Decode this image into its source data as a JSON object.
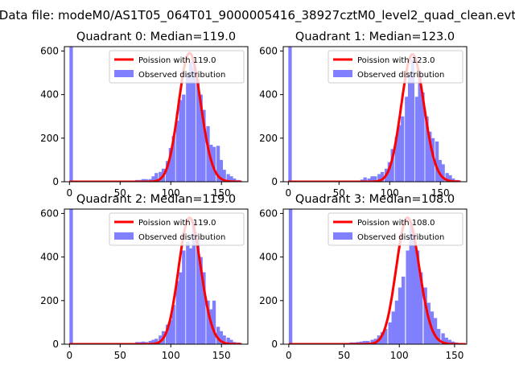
{
  "figure": {
    "suptitle": "Data file: modeM0/AS1T05_064T01_9000005416_38927cztM0_level2_quad_clean.evt"
  },
  "chart_data": [
    {
      "type": "bar",
      "title": "Quadrant 0: Median=119.0",
      "xlim": [
        -5,
        176
      ],
      "ylim": [
        0,
        620
      ],
      "xticks": [
        0,
        50,
        100,
        150
      ],
      "yticks": [
        0,
        200,
        400,
        600
      ],
      "legend_loc": "upper right",
      "series": [
        {
          "name": "Poission with 119.0",
          "kind": "line",
          "color": "#ff0000",
          "mean": 119.0,
          "peak": 590,
          "x_start": 0,
          "x_end": 170
        },
        {
          "name": "Observed distribution",
          "kind": "hist",
          "color": "#8080ff",
          "bin_width": 3.4,
          "bins": [
            [
              0,
              620
            ],
            [
              65,
              8
            ],
            [
              68,
              8
            ],
            [
              71,
              12
            ],
            [
              74,
              12
            ],
            [
              78,
              12
            ],
            [
              81,
              25
            ],
            [
              84,
              40
            ],
            [
              88,
              45
            ],
            [
              91,
              60
            ],
            [
              95,
              95
            ],
            [
              98,
              155
            ],
            [
              101,
              210
            ],
            [
              105,
              280
            ],
            [
              108,
              375
            ],
            [
              111,
              400
            ],
            [
              115,
              500
            ],
            [
              118,
              550
            ],
            [
              121,
              525
            ],
            [
              125,
              470
            ],
            [
              128,
              400
            ],
            [
              131,
              330
            ],
            [
              135,
              255
            ],
            [
              138,
              170
            ],
            [
              141,
              160
            ],
            [
              145,
              165
            ],
            [
              148,
              100
            ],
            [
              151,
              55
            ],
            [
              155,
              35
            ],
            [
              158,
              25
            ],
            [
              161,
              15
            ],
            [
              165,
              8
            ]
          ]
        }
      ]
    },
    {
      "type": "bar",
      "title": "Quadrant 1: Median=123.0",
      "xlim": [
        -5,
        176
      ],
      "ylim": [
        0,
        620
      ],
      "xticks": [
        0,
        50,
        100,
        150
      ],
      "yticks": [
        0,
        200,
        400,
        600
      ],
      "legend_loc": "upper right",
      "series": [
        {
          "name": "Poission with 123.0",
          "kind": "line",
          "color": "#ff0000",
          "mean": 123.0,
          "peak": 585,
          "x_start": 0,
          "x_end": 170
        },
        {
          "name": "Observed distribution",
          "kind": "hist",
          "color": "#8080ff",
          "bin_width": 3.4,
          "bins": [
            [
              0,
              620
            ],
            [
              71,
              10
            ],
            [
              74,
              20
            ],
            [
              78,
              15
            ],
            [
              81,
              25
            ],
            [
              84,
              25
            ],
            [
              88,
              35
            ],
            [
              91,
              45
            ],
            [
              95,
              60
            ],
            [
              98,
              90
            ],
            [
              101,
              150
            ],
            [
              105,
              205
            ],
            [
              108,
              260
            ],
            [
              111,
              300
            ],
            [
              115,
              390
            ],
            [
              118,
              500
            ],
            [
              121,
              560
            ],
            [
              125,
              390
            ],
            [
              128,
              510
            ],
            [
              131,
              410
            ],
            [
              135,
              300
            ],
            [
              138,
              230
            ],
            [
              141,
              200
            ],
            [
              145,
              185
            ],
            [
              148,
              100
            ],
            [
              151,
              80
            ],
            [
              155,
              40
            ],
            [
              158,
              30
            ],
            [
              161,
              15
            ],
            [
              165,
              8
            ]
          ]
        }
      ]
    },
    {
      "type": "bar",
      "title": "Quadrant 2: Median=119.0",
      "xlim": [
        -5,
        176
      ],
      "ylim": [
        0,
        620
      ],
      "xticks": [
        0,
        50,
        100,
        150
      ],
      "yticks": [
        0,
        200,
        400,
        600
      ],
      "legend_loc": "upper right",
      "series": [
        {
          "name": "Poission with 119.0",
          "kind": "line",
          "color": "#ff0000",
          "mean": 119.0,
          "peak": 580,
          "x_start": 0,
          "x_end": 170
        },
        {
          "name": "Observed distribution",
          "kind": "hist",
          "color": "#8080ff",
          "bin_width": 3.4,
          "bins": [
            [
              0,
              620
            ],
            [
              65,
              10
            ],
            [
              68,
              10
            ],
            [
              71,
              12
            ],
            [
              74,
              10
            ],
            [
              78,
              15
            ],
            [
              81,
              20
            ],
            [
              84,
              25
            ],
            [
              88,
              40
            ],
            [
              91,
              60
            ],
            [
              95,
              90
            ],
            [
              98,
              110
            ],
            [
              101,
              180
            ],
            [
              105,
              290
            ],
            [
              108,
              330
            ],
            [
              111,
              430
            ],
            [
              115,
              470
            ],
            [
              118,
              440
            ],
            [
              121,
              560
            ],
            [
              125,
              480
            ],
            [
              128,
              400
            ],
            [
              131,
              330
            ],
            [
              135,
              200
            ],
            [
              138,
              160
            ],
            [
              141,
              200
            ],
            [
              145,
              80
            ],
            [
              148,
              60
            ],
            [
              151,
              40
            ],
            [
              155,
              30
            ],
            [
              158,
              20
            ],
            [
              161,
              10
            ],
            [
              165,
              8
            ]
          ]
        }
      ]
    },
    {
      "type": "bar",
      "title": "Quadrant 3: Median=108.0",
      "xlim": [
        -5,
        161
      ],
      "ylim": [
        0,
        620
      ],
      "xticks": [
        0,
        50,
        100,
        150
      ],
      "yticks": [
        0,
        200,
        400,
        600
      ],
      "legend_loc": "upper right",
      "series": [
        {
          "name": "Poission with 108.0",
          "kind": "line",
          "color": "#ff0000",
          "mean": 108.0,
          "peak": 580,
          "x_start": 0,
          "x_end": 160
        },
        {
          "name": "Observed distribution",
          "kind": "hist",
          "color": "#8080ff",
          "bin_width": 3.2,
          "bins": [
            [
              0,
              620
            ],
            [
              55,
              8
            ],
            [
              58,
              8
            ],
            [
              61,
              10
            ],
            [
              64,
              12
            ],
            [
              67,
              15
            ],
            [
              70,
              15
            ],
            [
              74,
              20
            ],
            [
              77,
              25
            ],
            [
              80,
              40
            ],
            [
              83,
              55
            ],
            [
              86,
              70
            ],
            [
              90,
              100
            ],
            [
              93,
              150
            ],
            [
              96,
              200
            ],
            [
              99,
              260
            ],
            [
              102,
              310
            ],
            [
              106,
              430
            ],
            [
              109,
              560
            ],
            [
              112,
              510
            ],
            [
              115,
              430
            ],
            [
              118,
              330
            ],
            [
              122,
              260
            ],
            [
              125,
              190
            ],
            [
              128,
              150
            ],
            [
              131,
              120
            ],
            [
              134,
              70
            ],
            [
              138,
              50
            ],
            [
              141,
              30
            ],
            [
              144,
              20
            ],
            [
              147,
              12
            ],
            [
              150,
              8
            ]
          ]
        }
      ]
    }
  ]
}
